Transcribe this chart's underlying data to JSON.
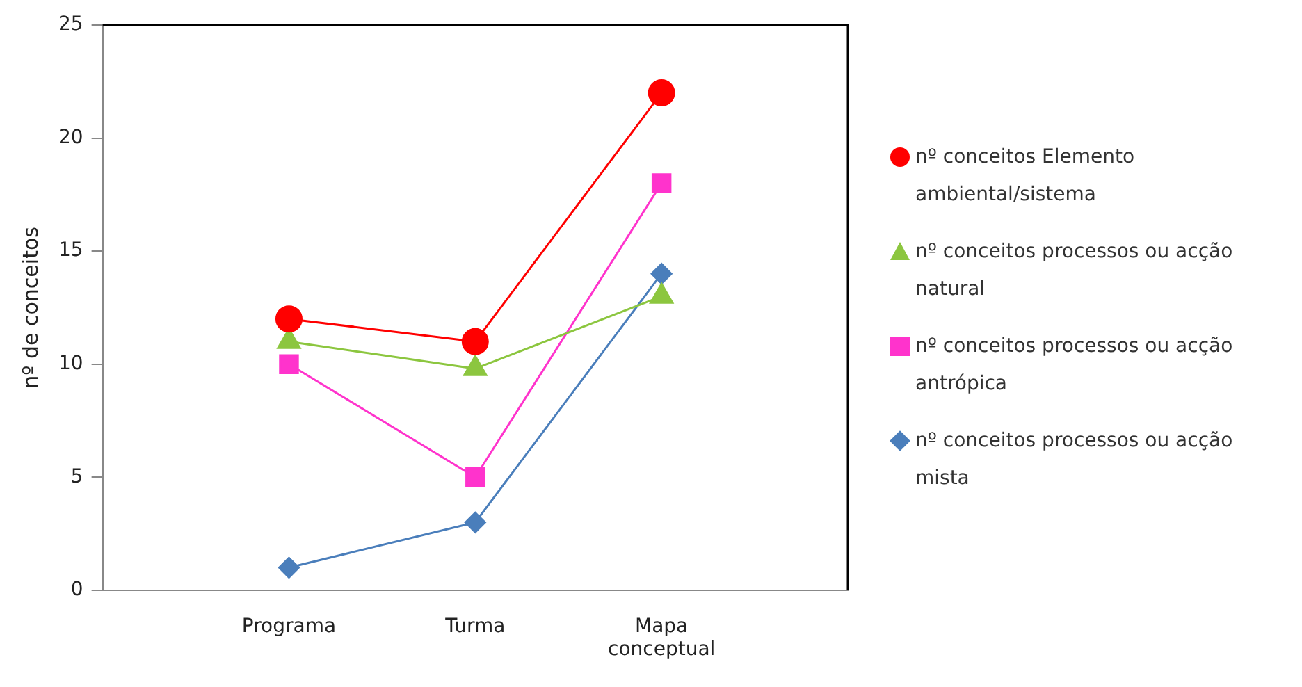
{
  "chart_data": {
    "type": "line",
    "ylabel": "nº de conceitos",
    "categories": [
      null,
      "Programa",
      "Turma",
      "Mapa conceptual",
      null
    ],
    "ylim": [
      0,
      25
    ],
    "yticks": [
      0,
      5,
      10,
      15,
      20,
      25
    ],
    "grid": false,
    "legend": "right",
    "series": [
      {
        "name": "nº conceitos Elemento ambiental/sistema",
        "color": "#ff0000",
        "marker": "circle",
        "values": [
          null,
          12,
          11,
          22,
          null
        ]
      },
      {
        "name": "nº conceitos processos ou acção natural",
        "color": "#8cc63f",
        "marker": "triangle",
        "values": [
          null,
          11,
          9.8,
          13,
          null
        ]
      },
      {
        "name": "nº conceitos processos ou acção antrópica",
        "color": "#ff33cc",
        "marker": "square",
        "values": [
          null,
          10,
          5,
          18,
          null
        ]
      },
      {
        "name": "nº conceitos processos ou acção mista",
        "color": "#4a7ebb",
        "marker": "diamond",
        "values": [
          null,
          1,
          3,
          14,
          null
        ]
      }
    ]
  }
}
